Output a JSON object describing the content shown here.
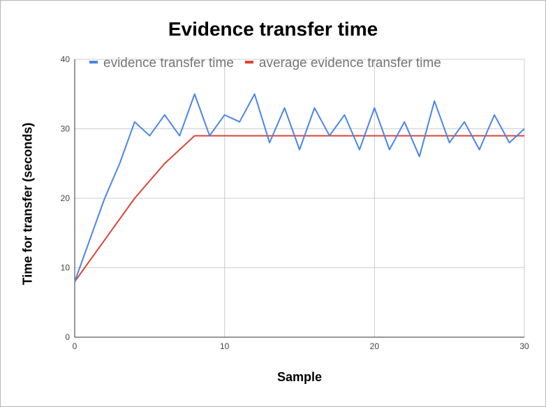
{
  "chart_data": {
    "type": "line",
    "title": "Evidence transfer time",
    "xlabel": "Sample",
    "ylabel": "Time for transfer (seconds)",
    "xlim": [
      0,
      30
    ],
    "ylim": [
      0,
      40
    ],
    "xticks": [
      0,
      10,
      20,
      30
    ],
    "yticks": [
      0,
      10,
      20,
      30,
      40
    ],
    "grid": true,
    "legend_position": "top",
    "x": [
      0,
      1,
      2,
      3,
      4,
      5,
      6,
      7,
      8,
      9,
      10,
      11,
      12,
      13,
      14,
      15,
      16,
      17,
      18,
      19,
      20,
      21,
      22,
      23,
      24,
      25,
      26,
      27,
      28,
      29,
      30
    ],
    "series": [
      {
        "name": "evidence transfer time",
        "color": "#4a86e8",
        "values": [
          8,
          14,
          20,
          25,
          31,
          29,
          32,
          29,
          35,
          29,
          32,
          31,
          35,
          28,
          33,
          27,
          33,
          29,
          32,
          27,
          33,
          27,
          31,
          26,
          34,
          28,
          31,
          27,
          32,
          28,
          30
        ]
      },
      {
        "name": "average evidence transfer time",
        "color": "#db4437",
        "values": [
          8,
          11,
          14,
          17,
          20,
          22.5,
          25,
          27,
          29,
          29,
          29,
          29,
          29,
          29,
          29,
          29,
          29,
          29,
          29,
          29,
          29,
          29,
          29,
          29,
          29,
          29,
          29,
          29,
          29,
          29,
          29
        ]
      }
    ]
  }
}
